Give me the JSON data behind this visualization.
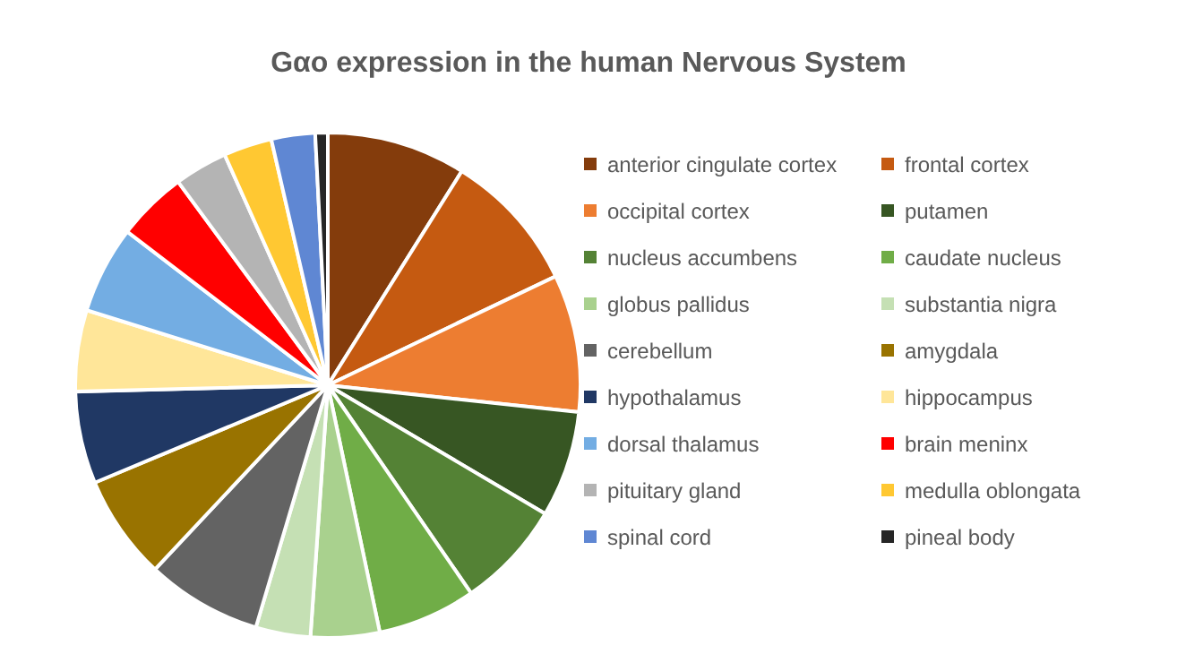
{
  "chart_data": {
    "type": "pie",
    "title": "Gαo expression in the human Nervous System",
    "categories": [
      "anterior cingulate cortex",
      "frontal cortex",
      "occipital cortex",
      "putamen",
      "nucleus accumbens",
      "caudate nucleus",
      "globus pallidus",
      "substantia nigra",
      "cerebellum",
      "amygdala",
      "hypothalamus",
      "hippocampus",
      "dorsal thalamus",
      "brain meninx",
      "pituitary gland",
      "medulla oblongata",
      "spinal cord",
      "pineal body"
    ],
    "values": [
      8.9,
      9.0,
      8.8,
      6.8,
      6.9,
      6.3,
      4.4,
      3.5,
      7.4,
      6.7,
      5.9,
      5.2,
      5.6,
      4.5,
      3.4,
      3.1,
      2.8,
      0.8
    ],
    "colors": [
      "#843c0c",
      "#c55a11",
      "#ed7d31",
      "#375623",
      "#548235",
      "#70ad47",
      "#a9d18e",
      "#c5e0b4",
      "#636363",
      "#997300",
      "#203864",
      "#ffe699",
      "#73ade3",
      "#ff0000",
      "#b4b4b4",
      "#ffc832",
      "#5f87d3",
      "#262626"
    ],
    "legend": "right"
  }
}
